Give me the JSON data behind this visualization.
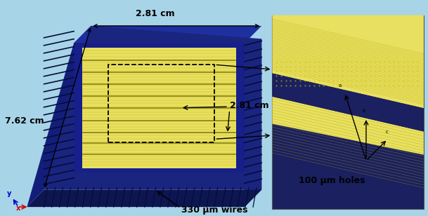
{
  "bg_color": "#a8d4e8",
  "fig_width": 6.09,
  "fig_height": 3.08,
  "dpi": 100,
  "navy": "#1a2580",
  "dark_navy": "#101a5e",
  "yellow": "#e8e060",
  "zoom_bg": "#1a2060",
  "label_2_81_top": "2.81 cm",
  "label_2_81_mid": "2.81 cm",
  "label_7_62": "7.62 cm",
  "label_wires": "330 μm wires",
  "label_holes": "100 μm holes"
}
